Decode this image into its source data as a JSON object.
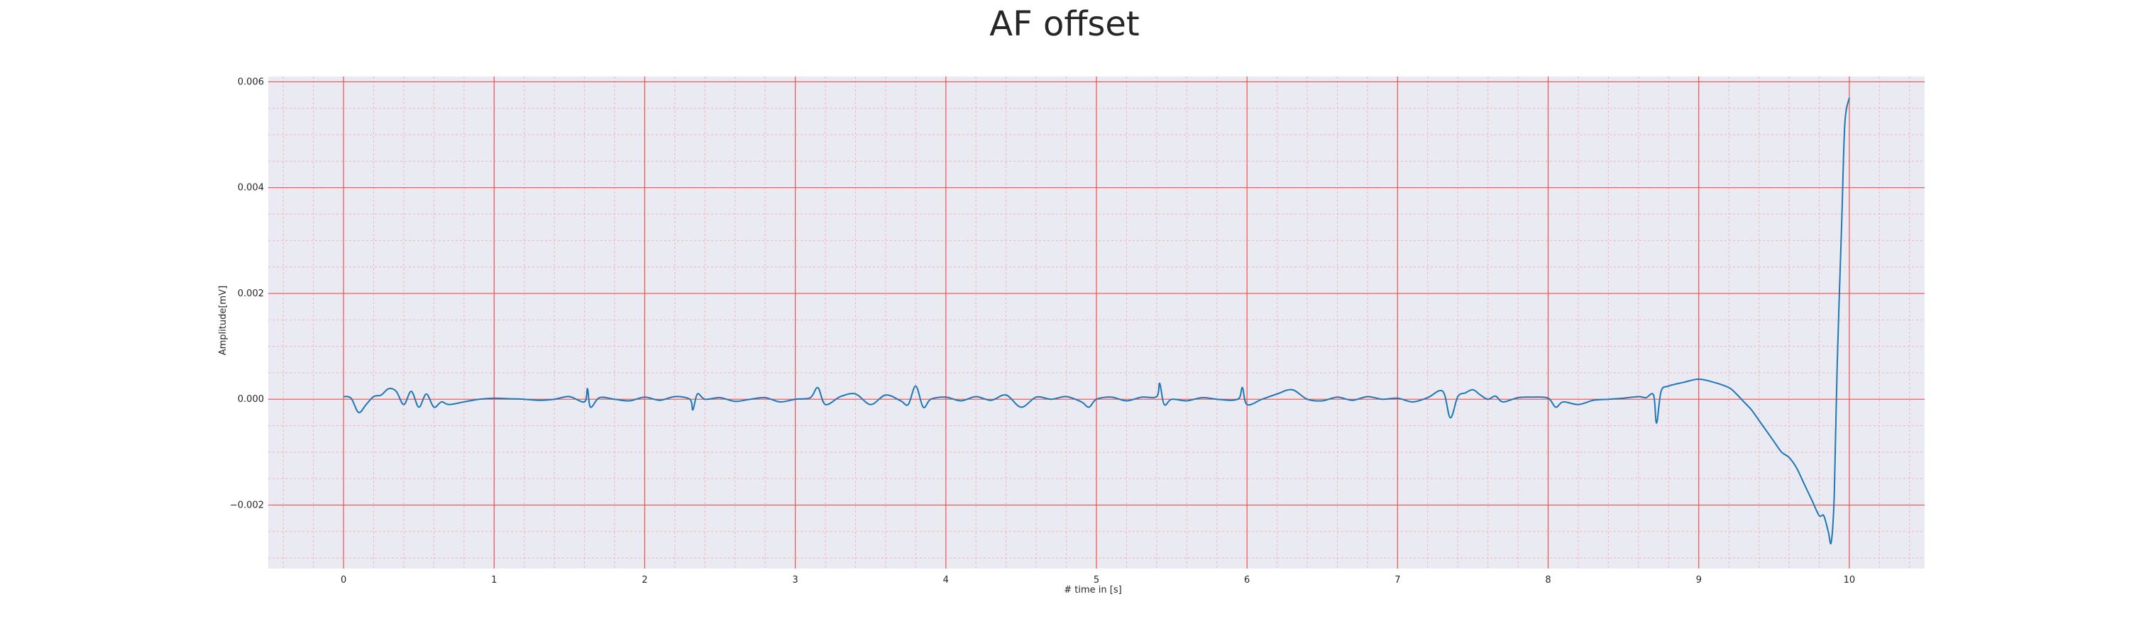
{
  "chart_data": {
    "type": "line",
    "title": "AF offset",
    "xlabel": "# time in [s]",
    "ylabel": "Amplitude[mV]",
    "xlim": [
      -0.5,
      10.5
    ],
    "ylim": [
      -0.0032,
      0.0061
    ],
    "x_ticks": [
      0,
      1,
      2,
      3,
      4,
      5,
      6,
      7,
      8,
      9,
      10
    ],
    "x_tick_labels": [
      "0",
      "1",
      "2",
      "3",
      "4",
      "5",
      "6",
      "7",
      "8",
      "9",
      "10"
    ],
    "y_ticks": [
      -0.002,
      0.0,
      0.002,
      0.004,
      0.006
    ],
    "y_tick_labels": [
      "−0.002",
      "0.000",
      "0.002",
      "0.004",
      "0.006"
    ],
    "grid": true,
    "minor_grid": true,
    "legend": "none",
    "colors": {
      "line": "#1f77b4",
      "plot_background": "#eaeaf2",
      "major_grid": "#ef5350",
      "minor_grid": "#f6b3b8"
    },
    "series": [
      {
        "x": [
          0,
          0.05,
          0.1,
          0.15,
          0.2,
          0.25,
          0.3,
          0.35,
          0.4,
          0.45,
          0.5,
          0.55,
          0.6,
          0.65,
          0.7,
          0.8,
          0.9,
          1.0,
          1.1,
          1.2,
          1.3,
          1.4,
          1.5,
          1.6,
          1.62,
          1.64,
          1.7,
          1.8,
          1.9,
          2.0,
          2.1,
          2.2,
          2.3,
          2.32,
          2.35,
          2.4,
          2.5,
          2.6,
          2.7,
          2.8,
          2.9,
          3.0,
          3.1,
          3.15,
          3.2,
          3.3,
          3.4,
          3.5,
          3.6,
          3.7,
          3.75,
          3.8,
          3.85,
          3.9,
          4.0,
          4.1,
          4.2,
          4.3,
          4.4,
          4.5,
          4.6,
          4.7,
          4.8,
          4.9,
          4.95,
          5.0,
          5.1,
          5.2,
          5.3,
          5.4,
          5.42,
          5.45,
          5.5,
          5.6,
          5.7,
          5.8,
          5.9,
          5.95,
          5.97,
          6.0,
          6.1,
          6.2,
          6.3,
          6.4,
          6.5,
          6.6,
          6.7,
          6.8,
          6.9,
          7.0,
          7.1,
          7.2,
          7.3,
          7.35,
          7.4,
          7.45,
          7.5,
          7.55,
          7.6,
          7.65,
          7.7,
          7.8,
          7.9,
          8.0,
          8.05,
          8.1,
          8.2,
          8.3,
          8.4,
          8.5,
          8.6,
          8.65,
          8.7,
          8.72,
          8.75,
          8.8,
          8.9,
          9.0,
          9.1,
          9.2,
          9.25,
          9.3,
          9.35,
          9.4,
          9.45,
          9.5,
          9.55,
          9.6,
          9.65,
          9.7,
          9.75,
          9.8,
          9.83,
          9.86,
          9.88,
          9.9,
          9.92,
          9.95,
          9.97,
          10.0
        ],
        "y": [
          5e-05,
          2e-05,
          -0.00025,
          -0.0001,
          5e-05,
          8e-05,
          0.0002,
          0.00015,
          -0.0001,
          0.00015,
          -0.00015,
          0.0001,
          -0.00015,
          -5e-05,
          -0.0001,
          -5e-05,
          0.0,
          2e-05,
          1e-05,
          0.0,
          -2e-05,
          0.0,
          5e-05,
          -5e-05,
          0.0002,
          -0.00015,
          3e-05,
          0.0,
          -3e-05,
          4e-05,
          -2e-05,
          5e-05,
          0.0,
          -0.0002,
          0.0001,
          0.0,
          3e-05,
          -4e-05,
          0.0,
          3e-05,
          -5e-05,
          0.0,
          3e-05,
          0.00022,
          -0.0001,
          5e-05,
          0.0001,
          -0.0001,
          8e-05,
          -3e-05,
          -0.0001,
          0.00025,
          -0.00015,
          0.0,
          4e-05,
          -3e-05,
          5e-05,
          -2e-05,
          8e-05,
          -0.00015,
          4e-05,
          0.0,
          5e-05,
          -5e-05,
          -0.00015,
          0.0,
          4e-05,
          -3e-05,
          4e-05,
          5e-05,
          0.0003,
          -0.0001,
          0.0,
          -3e-05,
          3e-05,
          0.0,
          -2e-05,
          3e-05,
          0.00022,
          -0.0001,
          0.0,
          0.0001,
          0.00018,
          0.0,
          -3e-05,
          4e-05,
          -2e-05,
          5e-05,
          0.0,
          2e-05,
          -5e-05,
          3e-05,
          0.00015,
          -0.00035,
          5e-05,
          0.00012,
          0.00018,
          8e-05,
          0.0,
          6e-05,
          -5e-05,
          3e-05,
          4e-05,
          2e-05,
          -0.00015,
          -5e-05,
          -0.0001,
          -2e-05,
          0.0,
          2e-05,
          5e-05,
          3e-05,
          8e-05,
          -0.00045,
          0.00015,
          0.00025,
          0.00032,
          0.00038,
          0.00032,
          0.00022,
          0.0001,
          -5e-05,
          -0.0002,
          -0.0004,
          -0.0006,
          -0.0008,
          -0.001,
          -0.0011,
          -0.0013,
          -0.0016,
          -0.0019,
          -0.0022,
          -0.0022,
          -0.0025,
          -0.0027,
          -0.0018,
          0.0007,
          0.0034,
          0.0052,
          0.0057
        ]
      }
    ]
  }
}
